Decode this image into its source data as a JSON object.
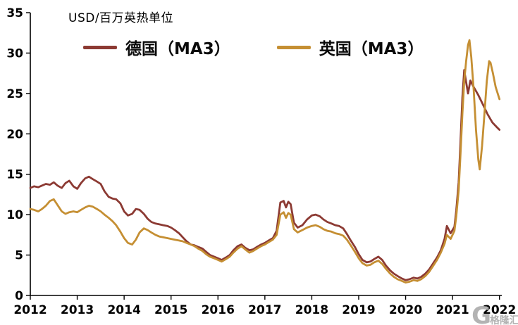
{
  "watermark": {
    "symbol": "G",
    "brand": "格隆汇"
  },
  "chart_data": {
    "type": "line",
    "title": "",
    "unit_label": "USD/百万英热单位",
    "xlabel": "",
    "ylabel": "USD/百万英热单位",
    "xlim": [
      2012,
      2022.05
    ],
    "ylim": [
      0,
      35
    ],
    "yticks": [
      0,
      5,
      10,
      15,
      20,
      25,
      30,
      35
    ],
    "xticks": [
      2012,
      2013,
      2014,
      2015,
      2016,
      2017,
      2018,
      2019,
      2020,
      2021,
      2022
    ],
    "grid": false,
    "legend_position": "top",
    "series": [
      {
        "name": "德国（MA3）",
        "color": "#8C3A33",
        "points": [
          [
            2012.0,
            13.3
          ],
          [
            2012.08,
            13.5
          ],
          [
            2012.17,
            13.4
          ],
          [
            2012.25,
            13.6
          ],
          [
            2012.33,
            13.8
          ],
          [
            2012.42,
            13.7
          ],
          [
            2012.5,
            14.0
          ],
          [
            2012.58,
            13.6
          ],
          [
            2012.67,
            13.3
          ],
          [
            2012.75,
            13.9
          ],
          [
            2012.83,
            14.2
          ],
          [
            2012.92,
            13.5
          ],
          [
            2013.0,
            13.2
          ],
          [
            2013.08,
            13.9
          ],
          [
            2013.17,
            14.5
          ],
          [
            2013.25,
            14.7
          ],
          [
            2013.33,
            14.4
          ],
          [
            2013.42,
            14.1
          ],
          [
            2013.5,
            13.8
          ],
          [
            2013.58,
            12.9
          ],
          [
            2013.67,
            12.2
          ],
          [
            2013.75,
            12.0
          ],
          [
            2013.83,
            11.9
          ],
          [
            2013.92,
            11.4
          ],
          [
            2014.0,
            10.4
          ],
          [
            2014.08,
            9.9
          ],
          [
            2014.17,
            10.1
          ],
          [
            2014.25,
            10.7
          ],
          [
            2014.33,
            10.6
          ],
          [
            2014.42,
            10.1
          ],
          [
            2014.5,
            9.5
          ],
          [
            2014.58,
            9.1
          ],
          [
            2014.67,
            8.9
          ],
          [
            2014.75,
            8.8
          ],
          [
            2014.83,
            8.7
          ],
          [
            2014.92,
            8.6
          ],
          [
            2015.0,
            8.4
          ],
          [
            2015.08,
            8.1
          ],
          [
            2015.17,
            7.7
          ],
          [
            2015.25,
            7.2
          ],
          [
            2015.33,
            6.7
          ],
          [
            2015.42,
            6.3
          ],
          [
            2015.5,
            6.2
          ],
          [
            2015.58,
            6.0
          ],
          [
            2015.67,
            5.8
          ],
          [
            2015.75,
            5.4
          ],
          [
            2015.83,
            5.0
          ],
          [
            2015.92,
            4.8
          ],
          [
            2016.0,
            4.6
          ],
          [
            2016.08,
            4.4
          ],
          [
            2016.17,
            4.7
          ],
          [
            2016.25,
            5.0
          ],
          [
            2016.33,
            5.6
          ],
          [
            2016.42,
            6.1
          ],
          [
            2016.5,
            6.3
          ],
          [
            2016.58,
            5.9
          ],
          [
            2016.67,
            5.6
          ],
          [
            2016.75,
            5.7
          ],
          [
            2016.83,
            6.0
          ],
          [
            2016.92,
            6.3
          ],
          [
            2017.0,
            6.5
          ],
          [
            2017.08,
            6.8
          ],
          [
            2017.17,
            7.1
          ],
          [
            2017.25,
            8.0
          ],
          [
            2017.33,
            11.5
          ],
          [
            2017.4,
            11.7
          ],
          [
            2017.45,
            10.9
          ],
          [
            2017.5,
            11.6
          ],
          [
            2017.55,
            11.3
          ],
          [
            2017.62,
            9.0
          ],
          [
            2017.7,
            8.4
          ],
          [
            2017.8,
            8.7
          ],
          [
            2017.9,
            9.4
          ],
          [
            2018.0,
            9.9
          ],
          [
            2018.08,
            10.0
          ],
          [
            2018.17,
            9.8
          ],
          [
            2018.25,
            9.4
          ],
          [
            2018.33,
            9.1
          ],
          [
            2018.42,
            8.9
          ],
          [
            2018.5,
            8.7
          ],
          [
            2018.58,
            8.6
          ],
          [
            2018.67,
            8.3
          ],
          [
            2018.75,
            7.6
          ],
          [
            2018.83,
            6.8
          ],
          [
            2018.92,
            6.0
          ],
          [
            2019.0,
            5.1
          ],
          [
            2019.08,
            4.4
          ],
          [
            2019.17,
            4.1
          ],
          [
            2019.25,
            4.2
          ],
          [
            2019.33,
            4.5
          ],
          [
            2019.42,
            4.8
          ],
          [
            2019.5,
            4.4
          ],
          [
            2019.58,
            3.7
          ],
          [
            2019.67,
            3.1
          ],
          [
            2019.75,
            2.7
          ],
          [
            2019.83,
            2.4
          ],
          [
            2019.92,
            2.1
          ],
          [
            2020.0,
            1.9
          ],
          [
            2020.08,
            2.0
          ],
          [
            2020.17,
            2.2
          ],
          [
            2020.25,
            2.1
          ],
          [
            2020.33,
            2.3
          ],
          [
            2020.42,
            2.7
          ],
          [
            2020.5,
            3.2
          ],
          [
            2020.58,
            3.9
          ],
          [
            2020.67,
            4.7
          ],
          [
            2020.75,
            5.6
          ],
          [
            2020.83,
            7.0
          ],
          [
            2020.88,
            8.6
          ],
          [
            2020.96,
            7.7
          ],
          [
            2021.04,
            8.5
          ],
          [
            2021.08,
            10.5
          ],
          [
            2021.13,
            14.0
          ],
          [
            2021.17,
            19.0
          ],
          [
            2021.21,
            24.5
          ],
          [
            2021.25,
            27.9
          ],
          [
            2021.29,
            26.4
          ],
          [
            2021.33,
            25.0
          ],
          [
            2021.38,
            26.6
          ],
          [
            2021.45,
            25.8
          ],
          [
            2021.55,
            24.8
          ],
          [
            2021.65,
            23.6
          ],
          [
            2021.75,
            22.4
          ],
          [
            2021.85,
            21.4
          ],
          [
            2021.95,
            20.8
          ],
          [
            2022.0,
            20.5
          ]
        ]
      },
      {
        "name": "英国（MA3）",
        "color": "#C58F33",
        "points": [
          [
            2012.0,
            10.7
          ],
          [
            2012.08,
            10.6
          ],
          [
            2012.17,
            10.4
          ],
          [
            2012.25,
            10.7
          ],
          [
            2012.33,
            11.1
          ],
          [
            2012.42,
            11.7
          ],
          [
            2012.5,
            11.9
          ],
          [
            2012.58,
            11.2
          ],
          [
            2012.67,
            10.4
          ],
          [
            2012.75,
            10.1
          ],
          [
            2012.83,
            10.3
          ],
          [
            2012.92,
            10.4
          ],
          [
            2013.0,
            10.3
          ],
          [
            2013.08,
            10.6
          ],
          [
            2013.17,
            10.9
          ],
          [
            2013.25,
            11.1
          ],
          [
            2013.33,
            11.0
          ],
          [
            2013.42,
            10.7
          ],
          [
            2013.5,
            10.4
          ],
          [
            2013.58,
            10.0
          ],
          [
            2013.67,
            9.6
          ],
          [
            2013.75,
            9.2
          ],
          [
            2013.83,
            8.7
          ],
          [
            2013.92,
            7.9
          ],
          [
            2014.0,
            7.1
          ],
          [
            2014.08,
            6.5
          ],
          [
            2014.17,
            6.3
          ],
          [
            2014.25,
            6.9
          ],
          [
            2014.33,
            7.8
          ],
          [
            2014.42,
            8.3
          ],
          [
            2014.5,
            8.1
          ],
          [
            2014.58,
            7.8
          ],
          [
            2014.67,
            7.5
          ],
          [
            2014.75,
            7.3
          ],
          [
            2014.83,
            7.2
          ],
          [
            2014.92,
            7.1
          ],
          [
            2015.0,
            7.0
          ],
          [
            2015.08,
            6.9
          ],
          [
            2015.17,
            6.8
          ],
          [
            2015.25,
            6.7
          ],
          [
            2015.33,
            6.5
          ],
          [
            2015.42,
            6.3
          ],
          [
            2015.5,
            6.1
          ],
          [
            2015.58,
            5.8
          ],
          [
            2015.67,
            5.5
          ],
          [
            2015.75,
            5.1
          ],
          [
            2015.83,
            4.8
          ],
          [
            2015.92,
            4.6
          ],
          [
            2016.0,
            4.4
          ],
          [
            2016.08,
            4.2
          ],
          [
            2016.17,
            4.5
          ],
          [
            2016.25,
            4.8
          ],
          [
            2016.33,
            5.3
          ],
          [
            2016.42,
            5.8
          ],
          [
            2016.5,
            6.1
          ],
          [
            2016.58,
            5.7
          ],
          [
            2016.67,
            5.3
          ],
          [
            2016.75,
            5.5
          ],
          [
            2016.83,
            5.8
          ],
          [
            2016.92,
            6.1
          ],
          [
            2017.0,
            6.3
          ],
          [
            2017.08,
            6.6
          ],
          [
            2017.17,
            6.9
          ],
          [
            2017.25,
            7.5
          ],
          [
            2017.33,
            10.0
          ],
          [
            2017.4,
            10.3
          ],
          [
            2017.45,
            9.6
          ],
          [
            2017.5,
            10.2
          ],
          [
            2017.55,
            10.0
          ],
          [
            2017.62,
            8.2
          ],
          [
            2017.7,
            7.8
          ],
          [
            2017.8,
            8.1
          ],
          [
            2017.9,
            8.4
          ],
          [
            2018.0,
            8.6
          ],
          [
            2018.08,
            8.7
          ],
          [
            2018.17,
            8.5
          ],
          [
            2018.25,
            8.2
          ],
          [
            2018.33,
            8.0
          ],
          [
            2018.42,
            7.9
          ],
          [
            2018.5,
            7.7
          ],
          [
            2018.58,
            7.6
          ],
          [
            2018.67,
            7.4
          ],
          [
            2018.75,
            6.9
          ],
          [
            2018.83,
            6.2
          ],
          [
            2018.92,
            5.4
          ],
          [
            2019.0,
            4.6
          ],
          [
            2019.08,
            4.0
          ],
          [
            2019.17,
            3.7
          ],
          [
            2019.25,
            3.8
          ],
          [
            2019.33,
            4.1
          ],
          [
            2019.42,
            4.3
          ],
          [
            2019.5,
            3.9
          ],
          [
            2019.58,
            3.3
          ],
          [
            2019.67,
            2.7
          ],
          [
            2019.75,
            2.3
          ],
          [
            2019.83,
            2.0
          ],
          [
            2019.92,
            1.8
          ],
          [
            2020.0,
            1.6
          ],
          [
            2020.08,
            1.7
          ],
          [
            2020.17,
            1.9
          ],
          [
            2020.25,
            1.8
          ],
          [
            2020.33,
            2.0
          ],
          [
            2020.42,
            2.4
          ],
          [
            2020.5,
            2.9
          ],
          [
            2020.58,
            3.6
          ],
          [
            2020.67,
            4.4
          ],
          [
            2020.75,
            5.3
          ],
          [
            2020.83,
            6.4
          ],
          [
            2020.88,
            7.5
          ],
          [
            2020.96,
            7.0
          ],
          [
            2021.04,
            8.0
          ],
          [
            2021.08,
            9.8
          ],
          [
            2021.13,
            13.0
          ],
          [
            2021.17,
            17.5
          ],
          [
            2021.21,
            22.5
          ],
          [
            2021.25,
            26.5
          ],
          [
            2021.29,
            29.0
          ],
          [
            2021.33,
            31.0
          ],
          [
            2021.36,
            31.6
          ],
          [
            2021.4,
            29.5
          ],
          [
            2021.45,
            25.5
          ],
          [
            2021.5,
            20.5
          ],
          [
            2021.55,
            16.8
          ],
          [
            2021.58,
            15.6
          ],
          [
            2021.63,
            18.5
          ],
          [
            2021.68,
            22.5
          ],
          [
            2021.73,
            26.5
          ],
          [
            2021.78,
            29.0
          ],
          [
            2021.81,
            28.8
          ],
          [
            2021.86,
            27.5
          ],
          [
            2021.92,
            25.8
          ],
          [
            2022.0,
            24.3
          ]
        ]
      }
    ]
  }
}
